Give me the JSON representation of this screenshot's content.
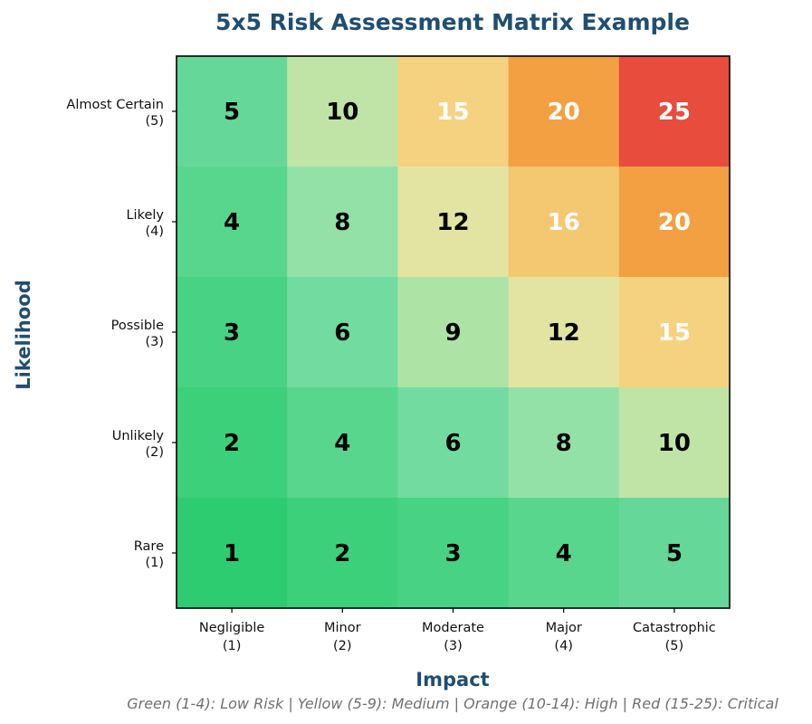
{
  "chart_data": {
    "type": "heatmap",
    "title": "5x5 Risk Assessment Matrix Example",
    "xlabel": "Impact",
    "ylabel": "Likelihood",
    "x_categories": [
      {
        "name": "Negligible",
        "level": "(1)"
      },
      {
        "name": "Minor",
        "level": "(2)"
      },
      {
        "name": "Moderate",
        "level": "(3)"
      },
      {
        "name": "Major",
        "level": "(4)"
      },
      {
        "name": "Catastrophic",
        "level": "(5)"
      }
    ],
    "y_categories": [
      {
        "name": "Almost Certain",
        "level": "(5)"
      },
      {
        "name": "Likely",
        "level": "(4)"
      },
      {
        "name": "Possible",
        "level": "(3)"
      },
      {
        "name": "Unlikely",
        "level": "(2)"
      },
      {
        "name": "Rare",
        "level": "(1)"
      }
    ],
    "values": [
      [
        5,
        10,
        15,
        20,
        25
      ],
      [
        4,
        8,
        12,
        16,
        20
      ],
      [
        3,
        6,
        9,
        12,
        15
      ],
      [
        2,
        4,
        6,
        8,
        10
      ],
      [
        1,
        2,
        3,
        4,
        5
      ]
    ],
    "colors": {
      "1": "#2ecc71",
      "2": "#3dd07a",
      "3": "#48d283",
      "4": "#58d68d",
      "5": "#65d899",
      "6": "#72dba0",
      "8": "#94e1a8",
      "9": "#aee3a6",
      "10": "#c0e4a6",
      "12": "#e3e4a1",
      "15": "#f5d27f",
      "16": "#f4c771",
      "20": "#f2a042",
      "25": "#e74c3c"
    },
    "light_text_values": [
      15,
      16,
      20,
      25
    ],
    "footnote": "Green (1-4): Low Risk | Yellow (5-9): Medium | Orange (10-14): High | Red (15-25): Critical"
  }
}
